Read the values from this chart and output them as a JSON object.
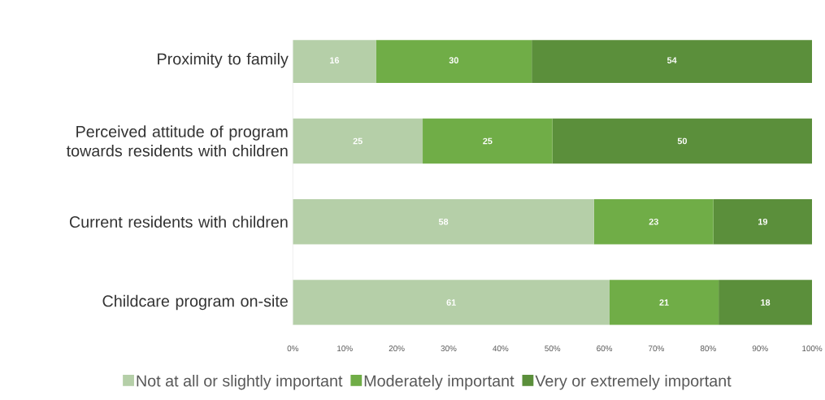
{
  "chart_data": {
    "type": "bar",
    "orientation": "horizontal",
    "stacked": true,
    "categories": [
      "Proximity to family",
      "Perceived attitude of program towards residents with children",
      "Current residents with children",
      "Childcare program on-site"
    ],
    "series": [
      {
        "name": "Not at all or slightly important",
        "color": "#b5cfa8",
        "values": [
          16,
          25,
          58,
          61
        ]
      },
      {
        "name": "Moderately important",
        "color": "#70ad47",
        "values": [
          30,
          25,
          23,
          21
        ]
      },
      {
        "name": "Very or extremely important",
        "color": "#5b8f3b",
        "values": [
          54,
          50,
          19,
          18
        ]
      }
    ],
    "xlim": [
      0,
      100
    ],
    "xticks": [
      {
        "value": 0,
        "label": "0%"
      },
      {
        "value": 10,
        "label": "10%"
      },
      {
        "value": 20,
        "label": "20%"
      },
      {
        "value": 30,
        "label": "30%"
      },
      {
        "value": 40,
        "label": "40%"
      },
      {
        "value": 50,
        "label": "50%"
      },
      {
        "value": 60,
        "label": "60%"
      },
      {
        "value": 70,
        "label": "70%"
      },
      {
        "value": 80,
        "label": "80%"
      },
      {
        "value": 90,
        "label": "90%"
      },
      {
        "value": 100,
        "label": "100%"
      }
    ],
    "data_labels": true,
    "legend": "bottom",
    "grid": false
  }
}
